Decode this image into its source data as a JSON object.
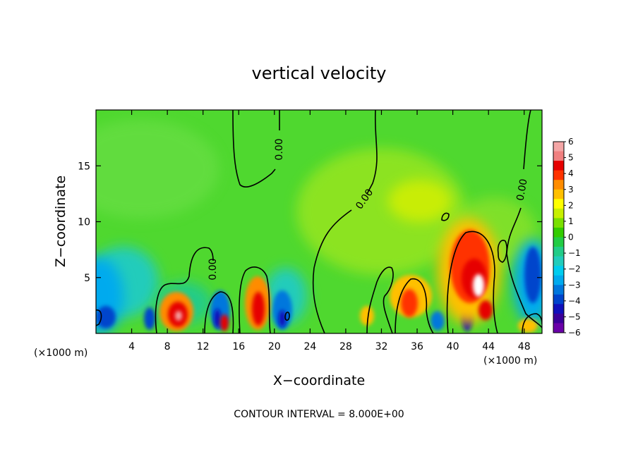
{
  "chart_data": {
    "type": "heatmap",
    "title": "vertical velocity",
    "xlabel": "X−coordinate",
    "ylabel": "Z−coordinate",
    "x_units": "(×1000 m)",
    "xlim": [
      0,
      50
    ],
    "ylim": [
      0,
      20
    ],
    "x_ticks": [
      4,
      8,
      12,
      16,
      20,
      24,
      28,
      32,
      36,
      40,
      44,
      48
    ],
    "y_ticks": [
      5,
      10,
      15
    ],
    "colorbar": {
      "range": [
        -6,
        6
      ],
      "ticks": [
        "6",
        "5",
        "4",
        "3",
        "2",
        "1",
        "0",
        "−1",
        "−2",
        "−3",
        "−4",
        "−5",
        "−6"
      ],
      "colors": [
        "#f4a6a6",
        "#f08080",
        "#e60000",
        "#ff3300",
        "#ff8c00",
        "#ffc000",
        "#ffff00",
        "#c8f000",
        "#7ae000",
        "#33cc00",
        "#22cc44",
        "#22cc88",
        "#22ccbb",
        "#00ccee",
        "#00aaee",
        "#0077dd",
        "#0044cc",
        "#1010bb",
        "#3a0099",
        "#6a00a8"
      ]
    },
    "contour_level_label": "0.00",
    "contour_interval_text": "CONTOUR INTERVAL = 8.000E+00",
    "features": [
      {
        "x": 1,
        "z": 1.5,
        "w": -4
      },
      {
        "x": 6,
        "z": 1.4,
        "w": -4
      },
      {
        "x": 9.5,
        "z": 1.8,
        "w": 5
      },
      {
        "x": 13.5,
        "z": 1.8,
        "w": -5
      },
      {
        "x": 14.5,
        "z": 1.0,
        "w": 4
      },
      {
        "x": 18,
        "z": 2.2,
        "w": 5
      },
      {
        "x": 21,
        "z": 2.0,
        "w": -4
      },
      {
        "x": 35,
        "z": 2.5,
        "w": 4
      },
      {
        "x": 37,
        "z": 1.5,
        "w": -3
      },
      {
        "x": 42,
        "z": 6.0,
        "w": 5
      },
      {
        "x": 42.5,
        "z": 4.2,
        "w": 6
      },
      {
        "x": 43,
        "z": 2.0,
        "w": 4
      },
      {
        "x": 41.5,
        "z": 1.2,
        "w": -4
      },
      {
        "x": 49,
        "z": 4.5,
        "w": -4
      },
      {
        "x": 1,
        "z": 5.5,
        "w": -2
      },
      {
        "x": 5,
        "z": 14,
        "w": 0.4
      },
      {
        "x": 36,
        "z": 11.5,
        "w": 1.2
      }
    ]
  }
}
